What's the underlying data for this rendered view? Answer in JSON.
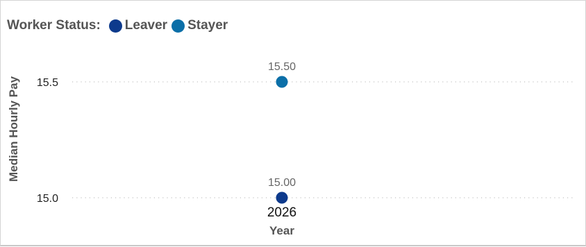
{
  "chart_data": {
    "type": "scatter",
    "legend": {
      "title": "Worker Status:",
      "placement": "top-left"
    },
    "categories": [
      "2026"
    ],
    "series": [
      {
        "name": "Leaver",
        "color": "#0d3a8c",
        "values": [
          15.0
        ],
        "labels": [
          "15.00"
        ]
      },
      {
        "name": "Stayer",
        "color": "#0b6fa8",
        "values": [
          15.5
        ],
        "labels": [
          "15.50"
        ]
      }
    ],
    "xlabel": "Year",
    "ylabel": "Median Hourly Pay",
    "yticks": [
      15.0,
      15.5
    ],
    "ytick_labels": [
      "15.0",
      "15.5"
    ],
    "ylim": [
      15.0,
      15.5
    ],
    "grid": true
  }
}
